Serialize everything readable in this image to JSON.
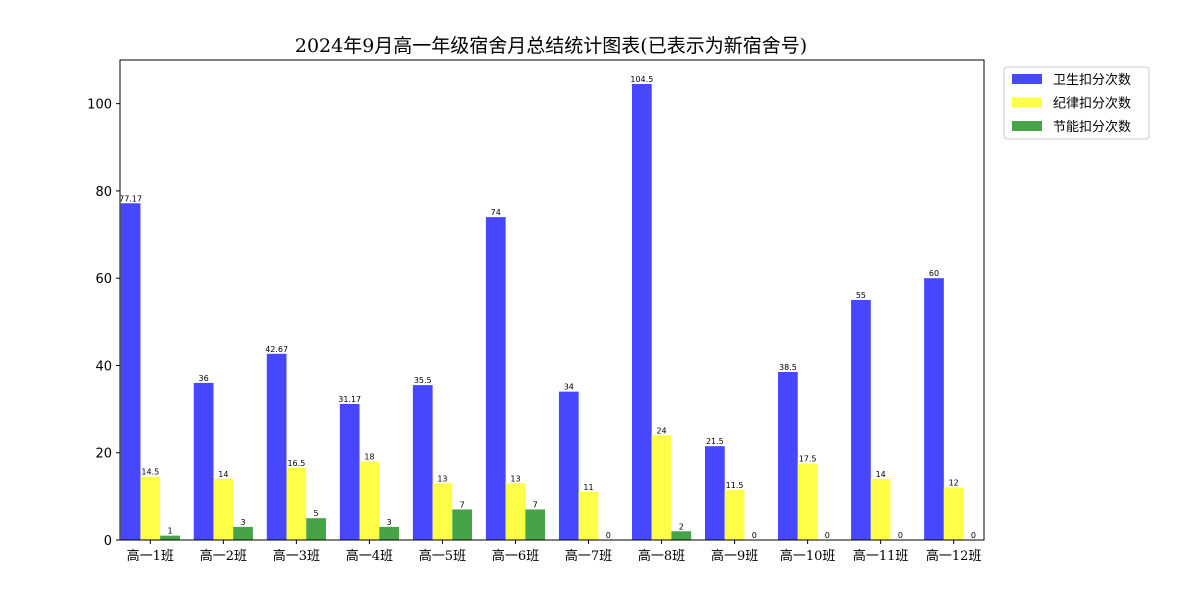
{
  "chart_data": {
    "type": "bar",
    "title": "2024年9月高一年级宿舍月总结统计图表(已表示为新宿舍号)",
    "categories": [
      "高一1班",
      "高一2班",
      "高一3班",
      "高一4班",
      "高一5班",
      "高一6班",
      "高一7班",
      "高一8班",
      "高一9班",
      "高一10班",
      "高一11班",
      "高一12班"
    ],
    "series": [
      {
        "name": "卫生扣分次数",
        "color": "#4747ff",
        "values": [
          77.17,
          36,
          42.67,
          31.17,
          35.5,
          74,
          34,
          104.5,
          21.5,
          38.5,
          55,
          60
        ],
        "labels": [
          "77.17",
          "36",
          "42.67",
          "31.17",
          "35.5",
          "74",
          "34",
          "104.5",
          "21.5",
          "38.5",
          "55",
          "60"
        ]
      },
      {
        "name": "纪律扣分次数",
        "color": "#ffff47",
        "values": [
          14.5,
          14,
          16.5,
          18,
          13,
          13,
          11,
          24,
          11.5,
          17.5,
          14,
          12
        ],
        "labels": [
          "14.5",
          "14",
          "16.5",
          "18",
          "13",
          "13",
          "11",
          "24",
          "11.5",
          "17.5",
          "14",
          "12"
        ]
      },
      {
        "name": "节能扣分次数",
        "color": "#47a347",
        "values": [
          1,
          3,
          5,
          3,
          7,
          7,
          0,
          2,
          0,
          0,
          0,
          0
        ],
        "labels": [
          "1",
          "3",
          "5",
          "3",
          "7",
          "7",
          "0",
          "2",
          "0",
          "0",
          "0",
          "0"
        ]
      }
    ],
    "ylim": [
      0,
      110
    ],
    "yticks": [
      "0",
      "20",
      "40",
      "60",
      "80",
      "100"
    ],
    "xlabel": "",
    "ylabel": "",
    "grid": false,
    "legend": "upper-right-outside"
  }
}
